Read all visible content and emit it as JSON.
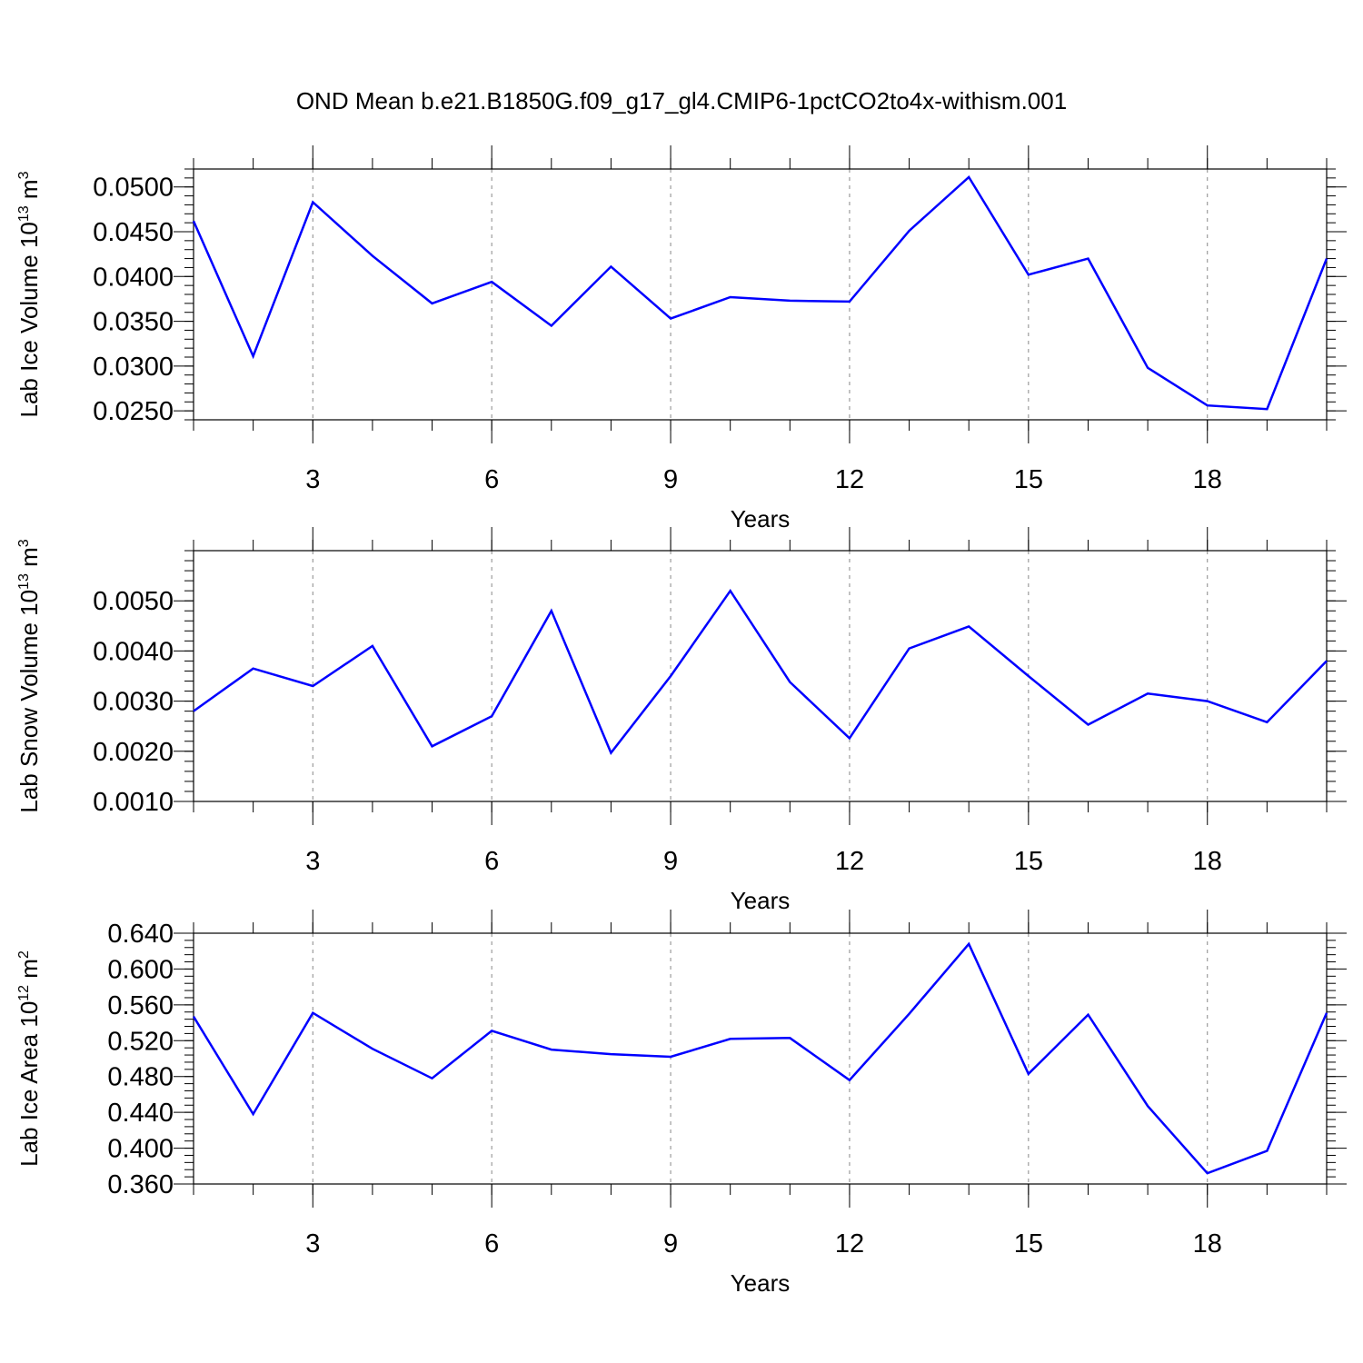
{
  "title": "OND Mean b.e21.B1850G.f09_g17_gl4.CMIP6-1pctCO2to4x-withism.001",
  "chart_data": [
    {
      "type": "line",
      "xlabel": "Years",
      "ylabel": {
        "main": "Lab Ice Volume 10",
        "exp": "13",
        "unit": " m",
        "unit_exp": "3"
      },
      "xlim": [
        1,
        20
      ],
      "ylim": [
        0.024,
        0.052
      ],
      "xticks": [
        3,
        6,
        9,
        12,
        15,
        18
      ],
      "yticks": [
        0.025,
        0.03,
        0.035,
        0.04,
        0.045,
        0.05
      ],
      "ytick_labels": [
        "0.0250",
        "0.0300",
        "0.0350",
        "0.0400",
        "0.0450",
        "0.0500"
      ],
      "grid": "x-dashed",
      "line_color": "#0000ff",
      "x": [
        1,
        2,
        3,
        4,
        5,
        6,
        7,
        8,
        9,
        10,
        11,
        12,
        13,
        14,
        15,
        16,
        17,
        18,
        19,
        20
      ],
      "values": [
        0.0462,
        0.0311,
        0.0483,
        0.0423,
        0.037,
        0.0394,
        0.0345,
        0.0411,
        0.0353,
        0.0377,
        0.0373,
        0.0372,
        0.0451,
        0.0511,
        0.0402,
        0.042,
        0.0298,
        0.0256,
        0.0252,
        0.042
      ]
    },
    {
      "type": "line",
      "xlabel": "Years",
      "ylabel": {
        "main": "Lab Snow Volume 10",
        "exp": "13",
        "unit": " m",
        "unit_exp": "3"
      },
      "xlim": [
        1,
        20
      ],
      "ylim": [
        0.001,
        0.006
      ],
      "xticks": [
        3,
        6,
        9,
        12,
        15,
        18
      ],
      "yticks": [
        0.001,
        0.002,
        0.003,
        0.004,
        0.005
      ],
      "ytick_labels": [
        "0.0010",
        "0.0020",
        "0.0030",
        "0.0040",
        "0.0050"
      ],
      "grid": "x-dashed",
      "line_color": "#0000ff",
      "x": [
        1,
        2,
        3,
        4,
        5,
        6,
        7,
        8,
        9,
        10,
        11,
        12,
        13,
        14,
        15,
        16,
        17,
        18,
        19,
        20
      ],
      "values": [
        0.0028,
        0.00365,
        0.0033,
        0.0041,
        0.0021,
        0.0027,
        0.0048,
        0.00197,
        0.0035,
        0.0052,
        0.00338,
        0.00226,
        0.00405,
        0.00449,
        0.0035,
        0.00253,
        0.00315,
        0.003,
        0.00258,
        0.0038
      ]
    },
    {
      "type": "line",
      "xlabel": "Years",
      "ylabel": {
        "main": "Lab Ice Area 10",
        "exp": "12",
        "unit": " m",
        "unit_exp": "2"
      },
      "xlim": [
        1,
        20
      ],
      "ylim": [
        0.36,
        0.64
      ],
      "xticks": [
        3,
        6,
        9,
        12,
        15,
        18
      ],
      "yticks": [
        0.36,
        0.4,
        0.44,
        0.48,
        0.52,
        0.56,
        0.6,
        0.64
      ],
      "ytick_labels": [
        "0.360",
        "0.400",
        "0.440",
        "0.480",
        "0.520",
        "0.560",
        "0.600",
        "0.640"
      ],
      "grid": "x-dashed",
      "line_color": "#0000ff",
      "x": [
        1,
        2,
        3,
        4,
        5,
        6,
        7,
        8,
        9,
        10,
        11,
        12,
        13,
        14,
        15,
        16,
        17,
        18,
        19,
        20
      ],
      "values": [
        0.547,
        0.438,
        0.551,
        0.511,
        0.478,
        0.531,
        0.51,
        0.505,
        0.502,
        0.522,
        0.523,
        0.476,
        0.55,
        0.628,
        0.483,
        0.549,
        0.447,
        0.372,
        0.397,
        0.551
      ]
    }
  ]
}
